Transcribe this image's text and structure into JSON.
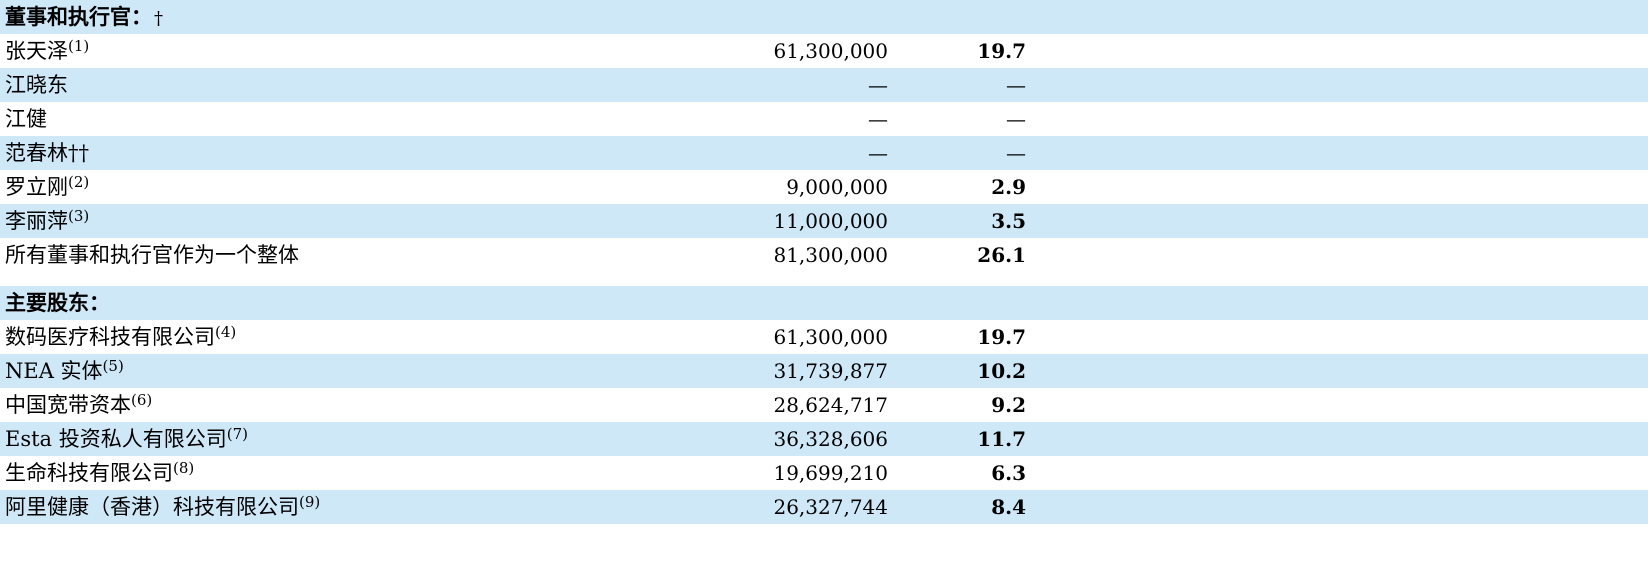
{
  "sections": [
    {
      "header": "董事和执行官：",
      "header_mark": "†",
      "rows": [
        {
          "name": "张天泽",
          "note": "(1)",
          "shares": "61,300,000",
          "percent": "19.7"
        },
        {
          "name": "江晓东",
          "note": "",
          "shares": "—",
          "percent": "—"
        },
        {
          "name": "江健",
          "note": "",
          "shares": "—",
          "percent": "—"
        },
        {
          "name": "范春林††",
          "note": "",
          "shares": "—",
          "percent": "—"
        },
        {
          "name": "罗立刚",
          "note": "(2)",
          "shares": "9,000,000",
          "percent": "2.9"
        },
        {
          "name": "李丽萍",
          "note": "(3)",
          "shares": "11,000,000",
          "percent": "3.5"
        },
        {
          "name": "所有董事和执行官作为一个整体",
          "note": "",
          "shares": "81,300,000",
          "percent": "26.1"
        }
      ]
    },
    {
      "header": "主要股东：",
      "header_mark": "",
      "rows": [
        {
          "name": "数码医疗科技有限公司",
          "note": "(4)",
          "shares": "61,300,000",
          "percent": "19.7"
        },
        {
          "name": "NEA 实体",
          "note": "(5)",
          "shares": "31,739,877",
          "percent": "10.2"
        },
        {
          "name": "中国宽带资本",
          "note": "(6)",
          "shares": "28,624,717",
          "percent": "9.2"
        },
        {
          "name": "Esta 投资私人有限公司",
          "note": "(7)",
          "shares": "36,328,606",
          "percent": "11.7"
        },
        {
          "name": "生命科技有限公司",
          "note": "(8)",
          "shares": "19,699,210",
          "percent": "6.3"
        },
        {
          "name": "阿里健康（香港）科技有限公司",
          "note": "(9)",
          "shares": "26,327,744",
          "percent": "8.4"
        }
      ]
    }
  ],
  "colors": {
    "row_shade": "#cfe8f8",
    "rule": "#000000"
  }
}
